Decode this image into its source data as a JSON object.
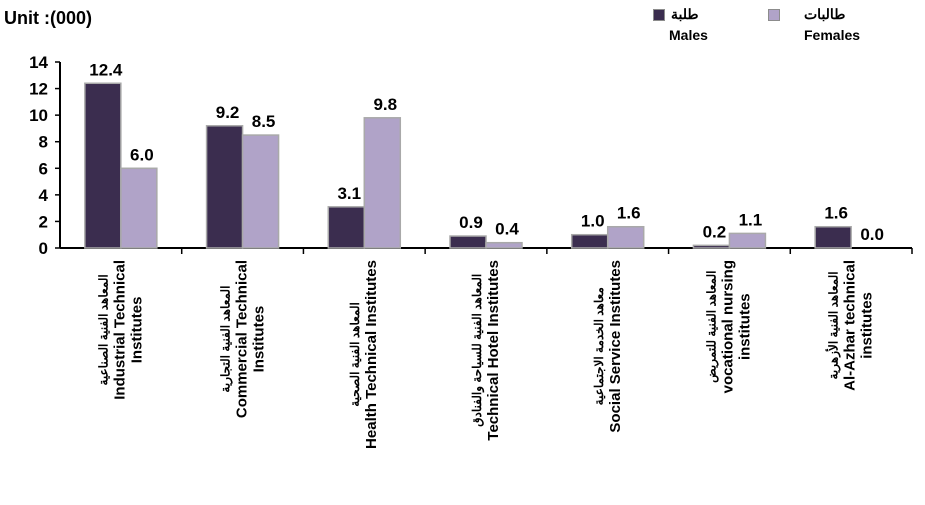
{
  "unit_label": "Unit :(000)",
  "legend": [
    {
      "ar": "طلبة",
      "en": "Males",
      "color": "#3b2d4f"
    },
    {
      "ar": "طالبات",
      "en": "Females",
      "color": "#b0a3c8"
    }
  ],
  "chart_data": {
    "type": "bar",
    "categories": [
      {
        "ar": "المعاهد الفنية الصناعية",
        "en": [
          "Industrial Technical",
          "Institutes"
        ]
      },
      {
        "ar": "المعاهد الفنية التجارية",
        "en": [
          "Commercial Technical",
          "Institutes"
        ]
      },
      {
        "ar": "المعاهد الفنية الصحية",
        "en": [
          "Health Technical  Institutes"
        ]
      },
      {
        "ar": "المعاهد الفنية للسياحة والفنادق",
        "en": [
          "Technical Hotel Institutes"
        ]
      },
      {
        "ar": "معاهد الخدمة الاجتماعية",
        "en": [
          "Social Service Institutes"
        ]
      },
      {
        "ar": "المعاهد الفنية للتمريض",
        "en": [
          "vocational nursing",
          "institutes"
        ]
      },
      {
        "ar": "المعاهد الفنية الأزهرية",
        "en": [
          "Al-Azhar technical",
          "institutes"
        ]
      }
    ],
    "series": [
      {
        "name": "Males",
        "color": "#3b2d4f",
        "values": [
          12.4,
          9.2,
          3.1,
          0.9,
          1.0,
          0.2,
          1.6
        ],
        "labels": [
          "12.4",
          "9.2",
          "3.1",
          "0.9",
          "1.0",
          "0.2",
          "1.6"
        ]
      },
      {
        "name": "Females",
        "color": "#b0a3c8",
        "values": [
          6.0,
          8.5,
          9.8,
          0.4,
          1.6,
          1.1,
          0.0
        ],
        "labels": [
          "6.0",
          "8.5",
          "9.8",
          "0.4",
          "1.6",
          "1.1",
          "0.0"
        ]
      }
    ],
    "yticks": [
      "0",
      "2",
      "4",
      "6",
      "8",
      "10",
      "12",
      "14"
    ],
    "ylim": [
      0,
      14
    ],
    "grid": false,
    "legend_position": "top-right"
  }
}
